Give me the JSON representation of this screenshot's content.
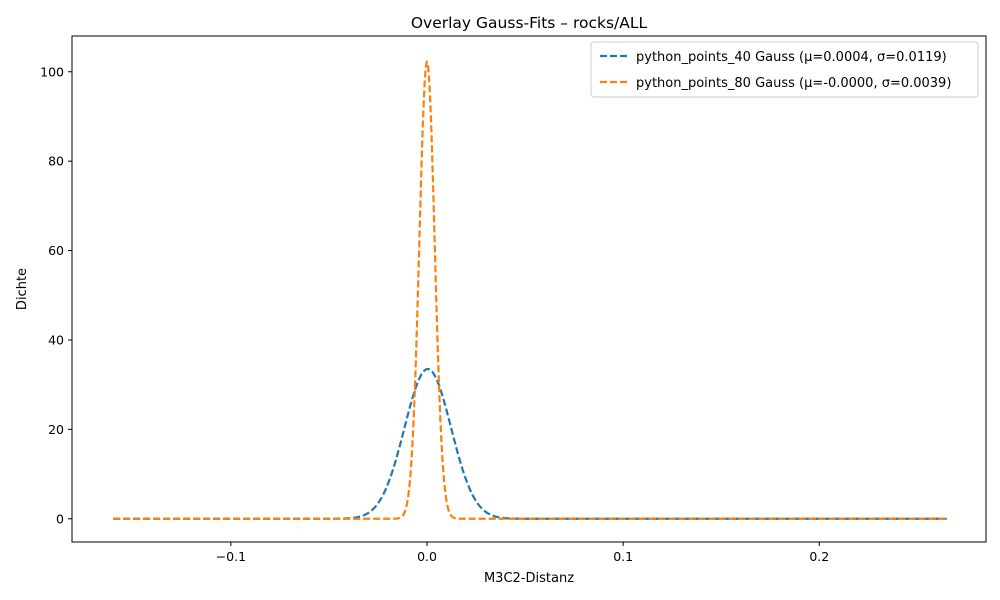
{
  "chart_data": {
    "type": "line",
    "title": "Overlay Gauss-Fits – rocks/ALL",
    "xlabel": "M3C2-Distanz",
    "ylabel": "Dichte",
    "xlim": [
      -0.181,
      0.285
    ],
    "ylim": [
      -5.2,
      108
    ],
    "x_range": [
      -0.16,
      0.265
    ],
    "xticks": [
      {
        "value": -0.1,
        "label": "−0.1"
      },
      {
        "value": 0.0,
        "label": "0.0"
      },
      {
        "value": 0.1,
        "label": "0.1"
      },
      {
        "value": 0.2,
        "label": "0.2"
      }
    ],
    "yticks": [
      {
        "value": 0,
        "label": "0"
      },
      {
        "value": 20,
        "label": "20"
      },
      {
        "value": 40,
        "label": "40"
      },
      {
        "value": 60,
        "label": "60"
      },
      {
        "value": 80,
        "label": "80"
      },
      {
        "value": 100,
        "label": "100"
      }
    ],
    "grid": false,
    "legend_position": "top-right",
    "series": [
      {
        "name": "python_points_40 Gauss (μ=0.0004, σ=0.0119)",
        "color": "#1f77b4",
        "line_style": "dashed",
        "mu": 0.0004,
        "sigma": 0.0119,
        "peak": 33.5
      },
      {
        "name": "python_points_80 Gauss (μ=-0.0000, σ=0.0039)",
        "color": "#ff7f0e",
        "line_style": "dashed",
        "mu": 0.0,
        "sigma": 0.0039,
        "peak": 102.3
      }
    ]
  }
}
